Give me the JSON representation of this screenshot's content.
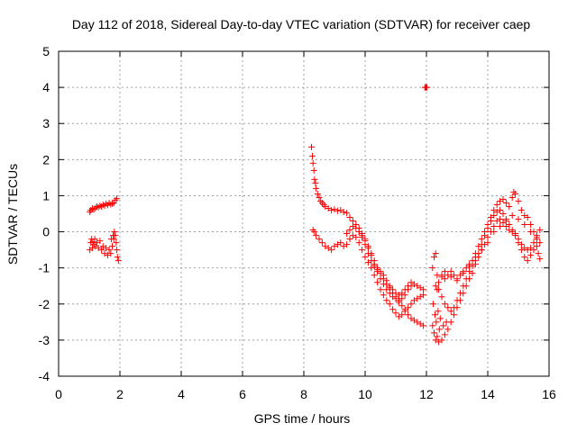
{
  "chart_data": {
    "type": "scatter",
    "title": "Day 112 of 2018, Sidereal Day-to-day VTEC variation (SDTVAR) for receiver caep",
    "xlabel": "GPS time / hours",
    "ylabel": "SDTVAR / TECUs",
    "xlim": [
      0,
      16
    ],
    "ylim": [
      -4,
      5
    ],
    "xticks": [
      "0",
      "2",
      "4",
      "6",
      "8",
      "10",
      "12",
      "14",
      "16"
    ],
    "yticks": [
      "-4",
      "-3",
      "-2",
      "-1",
      "0",
      "1",
      "2",
      "3",
      "4",
      "5"
    ],
    "grid": true,
    "marker": "+",
    "color": "#ff0000",
    "series": [
      {
        "points": [
          [
            1.02,
            0.55
          ],
          [
            1.05,
            0.6
          ],
          [
            1.1,
            0.65
          ],
          [
            1.15,
            0.62
          ],
          [
            1.2,
            0.66
          ],
          [
            1.25,
            0.7
          ],
          [
            1.3,
            0.68
          ],
          [
            1.35,
            0.72
          ],
          [
            1.4,
            0.7
          ],
          [
            1.45,
            0.75
          ],
          [
            1.5,
            0.72
          ],
          [
            1.55,
            0.78
          ],
          [
            1.6,
            0.74
          ],
          [
            1.65,
            0.8
          ],
          [
            1.7,
            0.76
          ],
          [
            1.75,
            0.78
          ],
          [
            1.8,
            0.8
          ],
          [
            1.85,
            0.88
          ],
          [
            1.9,
            0.92
          ],
          [
            1.02,
            -0.5
          ],
          [
            1.05,
            -0.3
          ],
          [
            1.08,
            -0.2
          ],
          [
            1.1,
            -0.45
          ],
          [
            1.12,
            -0.28
          ],
          [
            1.15,
            -0.35
          ],
          [
            1.18,
            -0.2
          ],
          [
            1.2,
            -0.4
          ],
          [
            1.25,
            -0.3
          ],
          [
            1.3,
            -0.45
          ],
          [
            1.35,
            -0.25
          ],
          [
            1.4,
            -0.5
          ],
          [
            1.45,
            -0.4
          ],
          [
            1.5,
            -0.6
          ],
          [
            1.55,
            -0.45
          ],
          [
            1.6,
            -0.65
          ],
          [
            1.65,
            -0.5
          ],
          [
            1.7,
            -0.6
          ],
          [
            1.75,
            -0.4
          ],
          [
            1.8,
            -0.2
          ],
          [
            1.82,
            0.0
          ],
          [
            1.85,
            -0.1
          ],
          [
            1.88,
            -0.3
          ],
          [
            1.9,
            -0.5
          ],
          [
            1.92,
            -0.7
          ],
          [
            1.95,
            -0.8
          ],
          [
            1.72,
            -0.2
          ],
          [
            1.78,
            -0.1
          ],
          [
            11.95,
            4.0
          ],
          [
            11.97,
            4.0
          ],
          [
            12.0,
            4.0
          ],
          [
            12.02,
            4.0
          ],
          [
            8.25,
            2.35
          ],
          [
            8.28,
            2.1
          ],
          [
            8.3,
            1.9
          ],
          [
            8.33,
            1.7
          ],
          [
            8.35,
            1.45
          ],
          [
            8.38,
            1.35
          ],
          [
            8.4,
            1.2
          ],
          [
            8.45,
            1.05
          ],
          [
            8.5,
            0.95
          ],
          [
            8.55,
            0.85
          ],
          [
            8.6,
            0.8
          ],
          [
            8.65,
            0.75
          ],
          [
            8.7,
            0.7
          ],
          [
            8.8,
            0.65
          ],
          [
            8.9,
            0.6
          ],
          [
            9.0,
            0.62
          ],
          [
            9.1,
            0.58
          ],
          [
            9.2,
            0.6
          ],
          [
            9.3,
            0.55
          ],
          [
            9.4,
            0.52
          ],
          [
            9.5,
            0.4
          ],
          [
            9.6,
            0.3
          ],
          [
            9.7,
            0.2
          ],
          [
            9.8,
            0.1
          ],
          [
            9.9,
            -0.05
          ],
          [
            10.0,
            -0.2
          ],
          [
            10.1,
            -0.4
          ],
          [
            10.2,
            -0.6
          ],
          [
            10.3,
            -0.8
          ],
          [
            10.4,
            -1.0
          ],
          [
            10.5,
            -1.15
          ],
          [
            10.6,
            -1.3
          ],
          [
            10.7,
            -1.45
          ],
          [
            10.8,
            -1.55
          ],
          [
            10.9,
            -1.7
          ],
          [
            11.0,
            -1.8
          ],
          [
            11.1,
            -1.95
          ],
          [
            11.2,
            -2.05
          ],
          [
            11.3,
            -2.15
          ],
          [
            11.4,
            -2.3
          ],
          [
            11.5,
            -2.4
          ],
          [
            11.6,
            -2.45
          ],
          [
            11.7,
            -2.5
          ],
          [
            11.8,
            -2.55
          ],
          [
            11.9,
            -2.6
          ],
          [
            8.3,
            0.05
          ],
          [
            8.35,
            0.0
          ],
          [
            8.4,
            -0.1
          ],
          [
            8.5,
            -0.2
          ],
          [
            8.6,
            -0.3
          ],
          [
            8.7,
            -0.4
          ],
          [
            8.8,
            -0.45
          ],
          [
            8.9,
            -0.5
          ],
          [
            9.0,
            -0.4
          ],
          [
            9.1,
            -0.35
          ],
          [
            9.2,
            -0.3
          ],
          [
            9.3,
            -0.4
          ],
          [
            9.4,
            -0.35
          ],
          [
            9.5,
            -0.2
          ],
          [
            9.6,
            -0.1
          ],
          [
            9.7,
            -0.15
          ],
          [
            9.8,
            -0.3
          ],
          [
            9.9,
            -0.5
          ],
          [
            10.0,
            -0.7
          ],
          [
            10.1,
            -0.85
          ],
          [
            10.2,
            -1.0
          ],
          [
            10.3,
            -1.2
          ],
          [
            10.4,
            -1.4
          ],
          [
            10.5,
            -1.6
          ],
          [
            10.6,
            -1.75
          ],
          [
            10.7,
            -1.9
          ],
          [
            10.8,
            -2.0
          ],
          [
            10.9,
            -2.15
          ],
          [
            11.0,
            -2.25
          ],
          [
            11.1,
            -2.35
          ],
          [
            11.2,
            -2.3
          ],
          [
            11.3,
            -2.2
          ],
          [
            11.4,
            -2.1
          ],
          [
            11.5,
            -2.0
          ],
          [
            11.6,
            -1.9
          ],
          [
            11.7,
            -1.85
          ],
          [
            11.8,
            -1.8
          ],
          [
            11.9,
            -1.75
          ],
          [
            9.4,
            -0.05
          ],
          [
            9.5,
            0.05
          ],
          [
            9.6,
            0.15
          ],
          [
            9.7,
            0.1
          ],
          [
            9.8,
            0.0
          ],
          [
            9.9,
            -0.1
          ],
          [
            10.0,
            -0.25
          ],
          [
            10.1,
            -0.45
          ],
          [
            10.2,
            -0.65
          ],
          [
            10.3,
            -0.9
          ],
          [
            10.4,
            -1.1
          ],
          [
            10.5,
            -1.3
          ],
          [
            10.6,
            -1.45
          ],
          [
            10.7,
            -1.6
          ],
          [
            10.8,
            -1.7
          ],
          [
            10.9,
            -1.8
          ],
          [
            11.0,
            -1.85
          ],
          [
            11.1,
            -1.9
          ],
          [
            11.2,
            -1.85
          ],
          [
            11.3,
            -1.75
          ],
          [
            11.4,
            -1.6
          ],
          [
            11.5,
            -1.5
          ],
          [
            11.6,
            -1.45
          ],
          [
            11.7,
            -1.5
          ],
          [
            11.8,
            -1.55
          ],
          [
            11.9,
            -1.6
          ],
          [
            9.8,
            0.0
          ],
          [
            9.9,
            -0.15
          ],
          [
            10.0,
            -0.35
          ],
          [
            10.1,
            -0.6
          ],
          [
            10.2,
            -0.8
          ],
          [
            10.3,
            -0.95
          ],
          [
            10.4,
            -1.05
          ],
          [
            10.5,
            -1.1
          ],
          [
            10.6,
            -1.2
          ],
          [
            10.7,
            -1.35
          ],
          [
            10.8,
            -1.5
          ],
          [
            10.9,
            -1.6
          ],
          [
            11.0,
            -1.7
          ],
          [
            11.1,
            -1.75
          ],
          [
            11.2,
            -1.7
          ],
          [
            11.3,
            -1.6
          ],
          [
            11.4,
            -1.5
          ],
          [
            11.5,
            -1.4
          ],
          [
            12.2,
            -2.6
          ],
          [
            12.25,
            -2.8
          ],
          [
            12.3,
            -3.0
          ],
          [
            12.35,
            -2.9
          ],
          [
            12.4,
            -3.05
          ],
          [
            12.5,
            -3.0
          ],
          [
            12.6,
            -2.85
          ],
          [
            12.7,
            -2.7
          ],
          [
            12.8,
            -2.5
          ],
          [
            12.9,
            -2.3
          ],
          [
            13.0,
            -2.1
          ],
          [
            13.1,
            -1.9
          ],
          [
            13.2,
            -1.7
          ],
          [
            13.3,
            -1.5
          ],
          [
            13.4,
            -1.3
          ],
          [
            13.5,
            -1.15
          ],
          [
            13.6,
            -0.9
          ],
          [
            13.7,
            -0.6
          ],
          [
            13.8,
            -0.35
          ],
          [
            13.9,
            -0.1
          ],
          [
            14.0,
            0.1
          ],
          [
            14.1,
            0.3
          ],
          [
            14.2,
            0.45
          ],
          [
            14.3,
            0.55
          ],
          [
            14.4,
            0.6
          ],
          [
            14.5,
            0.5
          ],
          [
            14.6,
            0.35
          ],
          [
            14.7,
            0.2
          ],
          [
            14.8,
            0.05
          ],
          [
            14.9,
            -0.1
          ],
          [
            15.0,
            -0.3
          ],
          [
            15.1,
            -0.5
          ],
          [
            15.2,
            -0.7
          ],
          [
            15.3,
            -0.8
          ],
          [
            15.4,
            -0.65
          ],
          [
            15.5,
            -0.5
          ],
          [
            15.6,
            -0.4
          ],
          [
            15.65,
            -0.6
          ],
          [
            15.7,
            -0.75
          ],
          [
            12.2,
            -1.0
          ],
          [
            12.25,
            -0.7
          ],
          [
            12.3,
            -0.6
          ],
          [
            12.35,
            -1.2
          ],
          [
            12.4,
            -1.4
          ],
          [
            12.5,
            -1.25
          ],
          [
            12.6,
            -1.3
          ],
          [
            12.7,
            -1.2
          ],
          [
            12.8,
            -1.1
          ],
          [
            12.9,
            -1.2
          ],
          [
            13.0,
            -1.3
          ],
          [
            13.1,
            -1.2
          ],
          [
            13.2,
            -1.1
          ],
          [
            13.3,
            -1.0
          ],
          [
            13.4,
            -0.9
          ],
          [
            13.5,
            -0.8
          ],
          [
            13.6,
            -0.6
          ],
          [
            13.7,
            -0.4
          ],
          [
            13.8,
            -0.2
          ],
          [
            13.9,
            0.0
          ],
          [
            14.0,
            0.2
          ],
          [
            14.1,
            0.4
          ],
          [
            14.2,
            0.6
          ],
          [
            14.3,
            0.75
          ],
          [
            14.4,
            0.85
          ],
          [
            14.5,
            0.9
          ],
          [
            14.6,
            0.8
          ],
          [
            14.7,
            0.7
          ],
          [
            14.8,
            0.95
          ],
          [
            14.85,
            1.1
          ],
          [
            14.9,
            1.05
          ],
          [
            15.0,
            0.85
          ],
          [
            15.1,
            0.6
          ],
          [
            15.2,
            0.45
          ],
          [
            15.3,
            0.4
          ],
          [
            15.4,
            0.2
          ],
          [
            15.5,
            0.0
          ],
          [
            15.6,
            -0.1
          ],
          [
            15.7,
            0.05
          ],
          [
            12.3,
            -1.5
          ],
          [
            12.4,
            -1.6
          ],
          [
            12.5,
            -1.8
          ],
          [
            12.6,
            -2.0
          ],
          [
            12.7,
            -2.1
          ],
          [
            12.8,
            -2.2
          ],
          [
            12.9,
            -2.1
          ],
          [
            13.0,
            -1.9
          ],
          [
            13.1,
            -1.7
          ],
          [
            13.2,
            -1.5
          ],
          [
            13.3,
            -1.3
          ],
          [
            13.4,
            -1.1
          ],
          [
            13.5,
            -0.95
          ],
          [
            13.6,
            -0.8
          ],
          [
            13.7,
            -0.7
          ],
          [
            13.8,
            -0.5
          ],
          [
            13.9,
            -0.35
          ],
          [
            14.0,
            -0.15
          ],
          [
            14.1,
            0.0
          ],
          [
            14.2,
            0.15
          ],
          [
            14.3,
            0.3
          ],
          [
            14.4,
            0.35
          ],
          [
            14.5,
            0.25
          ],
          [
            14.6,
            0.15
          ],
          [
            14.7,
            0.05
          ],
          [
            14.8,
            0.0
          ],
          [
            14.9,
            -0.05
          ],
          [
            15.0,
            -0.2
          ],
          [
            15.1,
            -0.35
          ],
          [
            15.2,
            -0.45
          ],
          [
            15.3,
            -0.5
          ],
          [
            15.4,
            -0.45
          ],
          [
            15.5,
            -0.3
          ],
          [
            15.6,
            -0.2
          ],
          [
            12.35,
            -1.6
          ],
          [
            12.5,
            -1.2
          ],
          [
            12.6,
            -1.1
          ],
          [
            12.8,
            -1.25
          ],
          [
            13.0,
            -1.35
          ],
          [
            13.2,
            -1.15
          ],
          [
            13.4,
            -0.95
          ],
          [
            13.6,
            -0.7
          ],
          [
            13.8,
            -0.5
          ],
          [
            14.0,
            -0.3
          ],
          [
            14.2,
            0.0
          ],
          [
            14.4,
            0.15
          ],
          [
            14.6,
            0.3
          ],
          [
            14.8,
            0.45
          ],
          [
            15.0,
            0.35
          ],
          [
            15.2,
            0.2
          ],
          [
            15.4,
            0.0
          ],
          [
            15.6,
            -0.15
          ],
          [
            15.7,
            -0.3
          ],
          [
            12.22,
            -2.0
          ],
          [
            12.28,
            -2.3
          ],
          [
            12.32,
            -2.5
          ],
          [
            12.38,
            -2.2
          ],
          [
            12.42,
            -2.7
          ],
          [
            12.45,
            -2.4
          ],
          [
            12.55,
            -2.6
          ],
          [
            12.65,
            -2.5
          ]
        ]
      }
    ]
  }
}
